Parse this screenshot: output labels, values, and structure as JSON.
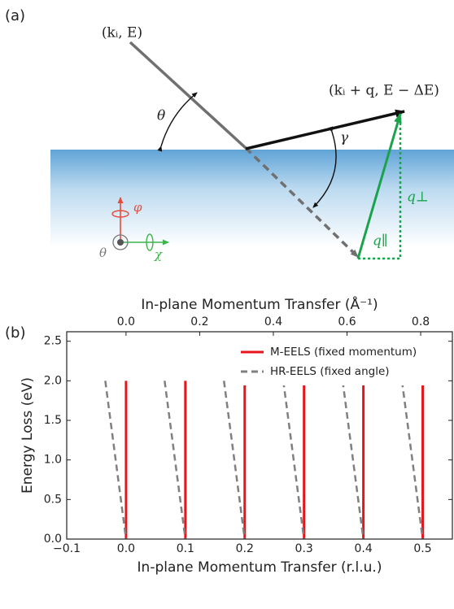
{
  "panel_a": {
    "label": "(a)",
    "incident": "(kᵢ, E)",
    "scattered": "(kᵢ + q, E − ΔE)",
    "theta": "θ",
    "gamma": "γ",
    "q_perp": "q⊥",
    "q_par": "q∥",
    "phi": "φ",
    "chi": "χ",
    "theta_axis": "θ"
  },
  "panel_b": {
    "label": "(b)"
  },
  "chart_data": {
    "type": "line",
    "x_label": "In-plane Momentum Transfer (r.l.u.)",
    "y_label": "Energy Loss (eV)",
    "x2_label": "In-plane Momentum Transfer (Å⁻¹)",
    "xlim": [
      -0.1,
      0.55
    ],
    "xticks": [
      {
        "value": -0.1,
        "label": "−0.1"
      },
      {
        "value": 0,
        "label": "0.0"
      },
      {
        "value": 0.1,
        "label": "0.1"
      },
      {
        "value": 0.2,
        "label": "0.2"
      },
      {
        "value": 0.3,
        "label": "0.3"
      },
      {
        "value": 0.4,
        "label": "0.4"
      },
      {
        "value": 0.5,
        "label": "0.5"
      }
    ],
    "x2lim": [
      -0.161,
      0.886
    ],
    "x2ticks": [
      {
        "value": 0,
        "label": "0.0"
      },
      0.2,
      0.4,
      0.6,
      0.8
    ],
    "ylim": [
      0,
      2.62
    ],
    "yticks": [
      {
        "value": 0,
        "label": "0.0"
      },
      0.5,
      {
        "value": 1,
        "label": "1.0"
      },
      1.5,
      {
        "value": 2,
        "label": "2.0"
      },
      2.5
    ],
    "legend": "upper right",
    "series": [
      {
        "name": "M-EELS (fixed momentum)",
        "color": "#e8141b",
        "dash": "solid",
        "x": [
          0,
          0,
          null,
          0.1,
          0.1,
          null,
          0.2,
          0.2,
          null,
          0.3,
          0.3,
          null,
          0.4,
          0.4,
          null,
          0.5,
          0.5
        ],
        "values": [
          0,
          2,
          null,
          0,
          2,
          null,
          0,
          2,
          null,
          0,
          2,
          null,
          0,
          2,
          null,
          0,
          2
        ]
      },
      {
        "name": "HR-EELS (fixed angle)",
        "color": "#808080",
        "dash": "dashed",
        "x": [
          -0.035,
          0,
          null,
          0.065,
          0.1,
          null,
          0.165,
          0.2,
          null,
          0.265,
          0.3,
          null,
          0.365,
          0.4,
          null,
          0.465,
          0.5
        ],
        "values": [
          2,
          0,
          null,
          2,
          0,
          null,
          2,
          0,
          null,
          2,
          0,
          null,
          2,
          0,
          null,
          2,
          0
        ]
      }
    ]
  }
}
